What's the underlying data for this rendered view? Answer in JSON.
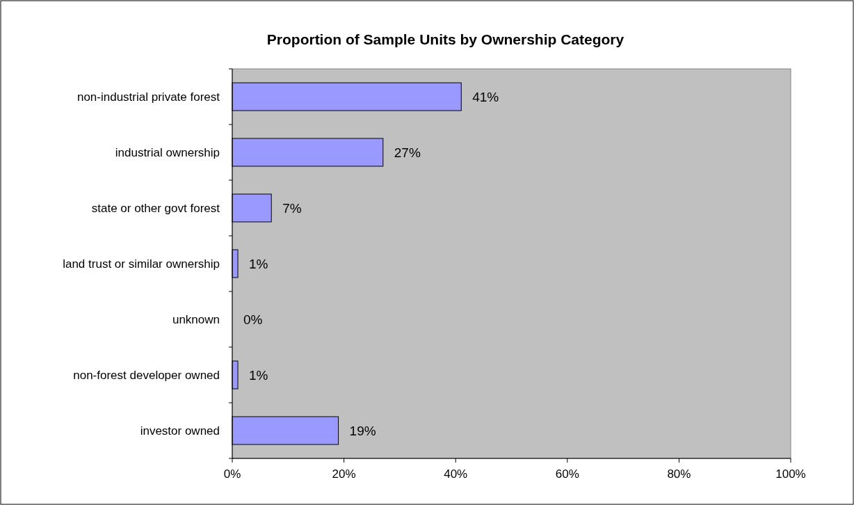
{
  "chart_data": {
    "type": "bar",
    "orientation": "horizontal",
    "title": "Proportion of Sample Units by Ownership Category",
    "categories": [
      "non-industrial private forest",
      "industrial ownership",
      "state or other govt forest",
      "land trust or similar ownership",
      "unknown",
      "non-forest developer owned",
      "investor owned"
    ],
    "values": [
      41,
      27,
      7,
      1,
      0,
      1,
      19
    ],
    "color": "#9999ff",
    "data_labels": true,
    "value_labels": [
      "41%",
      "27%",
      "7%",
      "1%",
      "0%",
      "1%",
      "19%"
    ],
    "xlim": [
      0,
      100
    ],
    "xticks": [
      {
        "value": 0,
        "label": "0%"
      },
      {
        "value": 20,
        "label": "20%"
      },
      {
        "value": 40,
        "label": "40%"
      },
      {
        "value": 60,
        "label": "60%"
      },
      {
        "value": 80,
        "label": "80%"
      },
      {
        "value": 100,
        "label": "100%"
      }
    ],
    "grid": false
  }
}
